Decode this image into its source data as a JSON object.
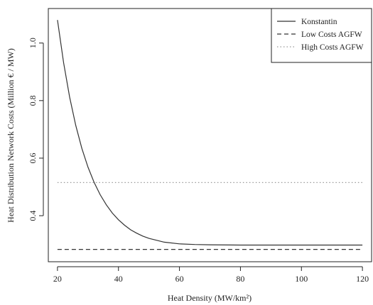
{
  "chart_data": {
    "type": "line",
    "title": "",
    "xlabel": "Heat Density (MW/km²)",
    "ylabel": "Heat Distribution Network Costs (Million € / MW)",
    "xlim": [
      17,
      123
    ],
    "ylim": [
      0.24,
      1.12
    ],
    "xticks": [
      20,
      40,
      60,
      80,
      100,
      120
    ],
    "yticks": [
      0.4,
      0.6,
      0.8,
      1.0
    ],
    "ytick_labels": [
      "0.4",
      "0.6",
      "0.8",
      "1.0"
    ],
    "grid": false,
    "legend_position": "top-right",
    "series": [
      {
        "name": "Konstantin",
        "style": "solid",
        "color": "#333333",
        "x": [
          20,
          22,
          24,
          26,
          28,
          30,
          32,
          34,
          36,
          38,
          40,
          42,
          44,
          46,
          48,
          50,
          55,
          60,
          65,
          70,
          80,
          90,
          100,
          110,
          120
        ],
        "y": [
          1.08,
          0.932,
          0.812,
          0.714,
          0.634,
          0.569,
          0.516,
          0.473,
          0.438,
          0.409,
          0.386,
          0.367,
          0.351,
          0.339,
          0.329,
          0.321,
          0.308,
          0.302,
          0.3,
          0.299,
          0.298,
          0.298,
          0.298,
          0.298,
          0.298
        ]
      },
      {
        "name": "Low Costs AGFW",
        "style": "dashed",
        "color": "#333333",
        "x": [
          20,
          120
        ],
        "y": [
          0.283,
          0.283
        ]
      },
      {
        "name": "High Costs AGFW",
        "style": "dotted",
        "color": "#999999",
        "x": [
          20,
          120
        ],
        "y": [
          0.515,
          0.515
        ]
      }
    ]
  }
}
